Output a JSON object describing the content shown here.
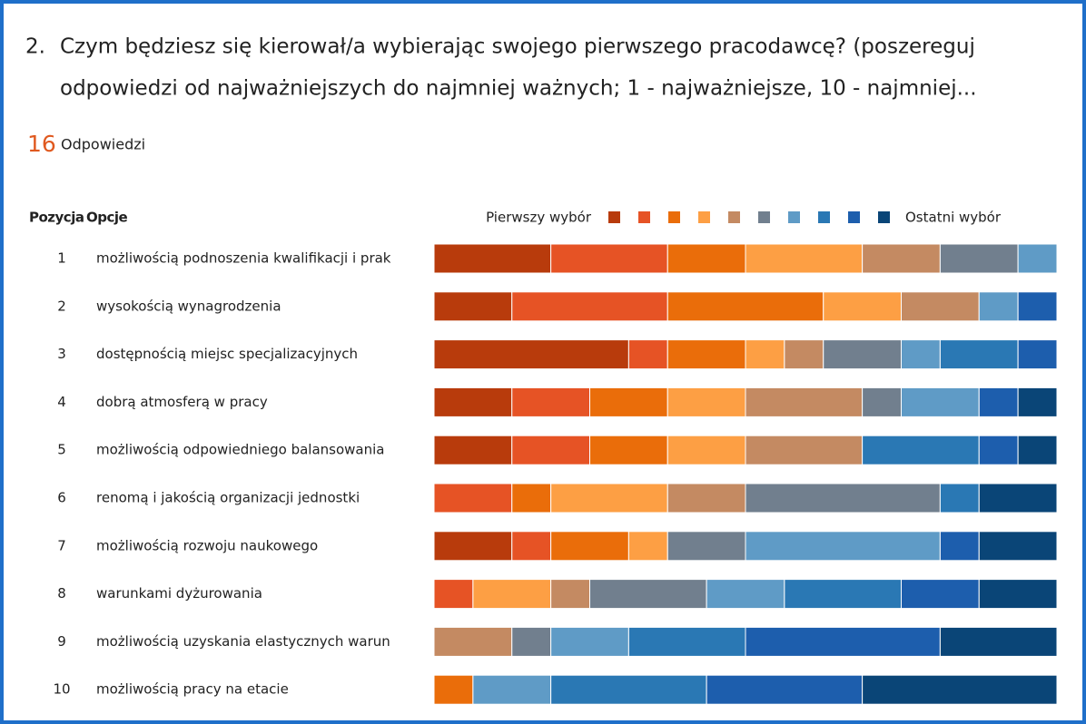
{
  "question_number": "2.",
  "title_lines": [
    "Czym będziesz się kierował/a wybierając swojego pierwszego pracodawcę? (poszereguj",
    "odpowiedzi od najważniejszych do najmniej ważnych; 1 - najważniejsze, 10 - najmniej..."
  ],
  "response_count": 16,
  "response_label": "Odpowiedzi",
  "chart_data": {
    "type": "stacked-bar-horizontal",
    "position_header": "Pozycja",
    "options_header": "Opcje",
    "legend_first": "Pierwszy wybór",
    "legend_last": "Ostatni wybór",
    "positions": [
      1,
      2,
      3,
      4,
      5,
      6,
      7,
      8,
      9,
      10
    ],
    "categories": [
      "możliwością podnoszenia kwalifikacji i prak",
      "wysokością wynagrodzenia",
      "dostępnością miejsc specjalizacyjnych",
      "dobrą atmosferą w pracy",
      "możliwością odpowiedniego balansowania",
      "renomą i jakością organizacji jednostki",
      "możliwością rozwoju naukowego",
      "warunkami dyżurowania",
      "możliwością uzyskania elastycznych warun",
      "możliwością pracy na etacie"
    ],
    "xlim": [
      0,
      16
    ],
    "series": [
      {
        "color": "#b83b0c",
        "values": [
          3,
          2,
          5,
          2,
          2,
          0,
          2,
          0,
          0,
          0
        ]
      },
      {
        "color": "#e65325",
        "values": [
          3,
          4,
          1,
          2,
          2,
          2,
          1,
          1,
          0,
          0
        ]
      },
      {
        "color": "#ea6d0a",
        "values": [
          2,
          4,
          2,
          2,
          2,
          1,
          2,
          0,
          0,
          1
        ]
      },
      {
        "color": "#fd9f44",
        "values": [
          3,
          2,
          1,
          2,
          2,
          3,
          1,
          2,
          0,
          0
        ]
      },
      {
        "color": "#c48a62",
        "values": [
          2,
          2,
          1,
          3,
          3,
          2,
          0,
          1,
          2,
          0
        ]
      },
      {
        "color": "#717f8e",
        "values": [
          2,
          0,
          2,
          1,
          0,
          5,
          2,
          3,
          1,
          0
        ]
      },
      {
        "color": "#5f9bc6",
        "values": [
          1,
          1,
          1,
          2,
          0,
          0,
          5,
          2,
          2,
          2
        ]
      },
      {
        "color": "#2a78b4",
        "values": [
          0,
          0,
          2,
          0,
          3,
          1,
          0,
          3,
          3,
          4
        ]
      },
      {
        "color": "#1d5ead",
        "values": [
          0,
          1,
          1,
          1,
          1,
          0,
          1,
          2,
          5,
          4
        ]
      },
      {
        "color": "#0a4577",
        "values": [
          0,
          0,
          0,
          1,
          1,
          2,
          2,
          2,
          3,
          5
        ]
      }
    ]
  }
}
